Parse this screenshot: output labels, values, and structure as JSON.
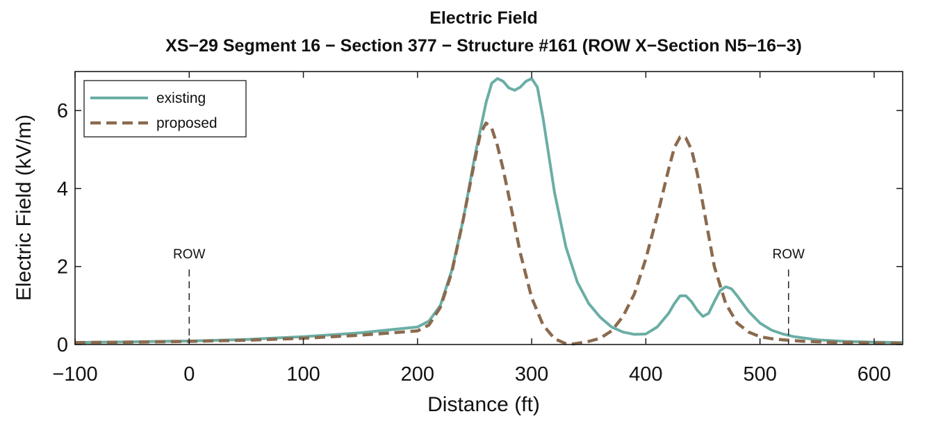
{
  "chart_data": {
    "type": "line",
    "title": "Electric Field",
    "subtitle": "XS−29 Segment 16 − Section 377 − Structure #161 (ROW X−Section N5−16−3)",
    "xlabel": "Distance (ft)",
    "ylabel": "Electric Field (kV/m)",
    "xlim": [
      -100,
      625
    ],
    "ylim": [
      0,
      7
    ],
    "xticks": [
      -100,
      0,
      100,
      200,
      300,
      400,
      500,
      600
    ],
    "xtick_labels": [
      "−100",
      "0",
      "100",
      "200",
      "300",
      "400",
      "500",
      "600"
    ],
    "yticks": [
      0,
      2,
      4,
      6
    ],
    "ytick_labels": [
      "0",
      "2",
      "4",
      "6"
    ],
    "grid": false,
    "legend_position": "top-left",
    "annotations": [
      {
        "label": "ROW",
        "x": 0
      },
      {
        "label": "ROW",
        "x": 525
      }
    ],
    "series": [
      {
        "name": "existing",
        "color": "#6aaea5",
        "style": "solid",
        "x": [
          -100,
          -50,
          0,
          50,
          100,
          150,
          200,
          210,
          220,
          230,
          240,
          250,
          260,
          265,
          270,
          275,
          280,
          285,
          290,
          295,
          300,
          305,
          310,
          320,
          330,
          340,
          350,
          360,
          370,
          380,
          390,
          400,
          410,
          420,
          425,
          430,
          435,
          440,
          445,
          450,
          455,
          460,
          465,
          470,
          475,
          480,
          490,
          500,
          510,
          520,
          530,
          550,
          575,
          600,
          625
        ],
        "y": [
          0.05,
          0.07,
          0.09,
          0.13,
          0.2,
          0.3,
          0.45,
          0.6,
          1.0,
          1.9,
          3.2,
          4.8,
          6.2,
          6.7,
          6.82,
          6.75,
          6.58,
          6.52,
          6.6,
          6.75,
          6.82,
          6.6,
          5.8,
          3.9,
          2.5,
          1.6,
          1.05,
          0.7,
          0.45,
          0.32,
          0.26,
          0.27,
          0.45,
          0.8,
          1.05,
          1.25,
          1.25,
          1.1,
          0.88,
          0.72,
          0.8,
          1.1,
          1.38,
          1.48,
          1.43,
          1.25,
          0.85,
          0.55,
          0.37,
          0.27,
          0.2,
          0.12,
          0.08,
          0.06,
          0.05
        ]
      },
      {
        "name": "proposed",
        "color": "#8b6a4e",
        "style": "dashed",
        "x": [
          -100,
          -50,
          0,
          50,
          100,
          150,
          200,
          210,
          220,
          230,
          240,
          250,
          255,
          260,
          265,
          270,
          275,
          280,
          290,
          300,
          310,
          320,
          330,
          335,
          340,
          350,
          360,
          370,
          380,
          390,
          400,
          410,
          420,
          425,
          430,
          435,
          440,
          445,
          450,
          455,
          460,
          470,
          480,
          490,
          500,
          510,
          520,
          540,
          560,
          600,
          625
        ],
        "y": [
          0.05,
          0.06,
          0.08,
          0.11,
          0.16,
          0.24,
          0.35,
          0.5,
          0.95,
          1.85,
          3.2,
          4.7,
          5.4,
          5.68,
          5.55,
          5.1,
          4.5,
          3.8,
          2.35,
          1.2,
          0.5,
          0.15,
          0.02,
          0.01,
          0.03,
          0.08,
          0.16,
          0.35,
          0.72,
          1.3,
          2.2,
          3.3,
          4.5,
          5.05,
          5.32,
          5.3,
          5.0,
          4.4,
          3.6,
          2.8,
          2.0,
          1.05,
          0.55,
          0.32,
          0.2,
          0.15,
          0.12,
          0.08,
          0.06,
          0.04,
          0.03
        ]
      }
    ]
  }
}
